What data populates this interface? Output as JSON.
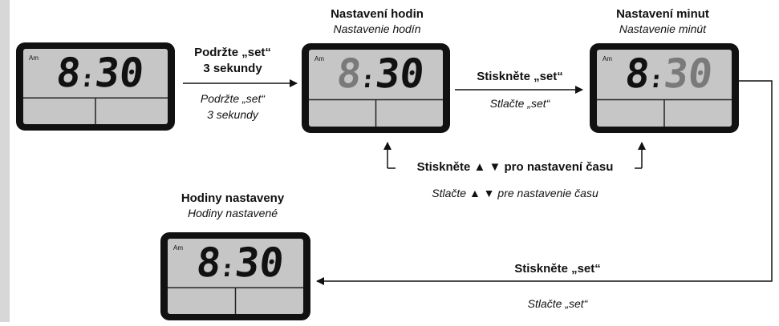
{
  "steps": {
    "hold": {
      "cz": [
        "Podržte „set“",
        "3 sekundy"
      ],
      "sk": [
        "Podržte „set“",
        "3 sekundy"
      ]
    },
    "hours_title": {
      "cz": "Nastavení hodin",
      "sk": "Nastavenie hodín"
    },
    "minutes_title": {
      "cz": "Nastavení minut",
      "sk": "Nastavenie minút"
    },
    "press_set_1": {
      "cz": "Stiskněte „set“",
      "sk": "Stlačte „set“"
    },
    "adjust": {
      "cz": "Stiskněte ▲ ▼ pro nastavení času",
      "sk": "Stlačte ▲ ▼ pre nastavenie času"
    },
    "done_title": {
      "cz": "Hodiny nastaveny",
      "sk": "Hodiny nastavené"
    },
    "press_set_2": {
      "cz": "Stiskněte „set“",
      "sk": "Stlačte „set“"
    }
  },
  "displays": [
    {
      "am": "Am",
      "hours": "8",
      "separator": ":",
      "minutes": "30",
      "am_color": "#222",
      "hours_color": "#111",
      "minutes_color": "#111"
    },
    {
      "am": "Am",
      "hours": "8",
      "separator": ":",
      "minutes": "30",
      "am_color": "#9a9a9a",
      "hours_color": "#7a7a7a",
      "minutes_color": "#111"
    },
    {
      "am": "Am",
      "hours": "8",
      "separator": ":",
      "minutes": "30",
      "am_color": "#222",
      "hours_color": "#111",
      "minutes_color": "#7a7a7a"
    },
    {
      "am": "Am",
      "hours": "8",
      "separator": ":",
      "minutes": "30",
      "am_color": "#222",
      "hours_color": "#111",
      "minutes_color": "#111"
    }
  ]
}
